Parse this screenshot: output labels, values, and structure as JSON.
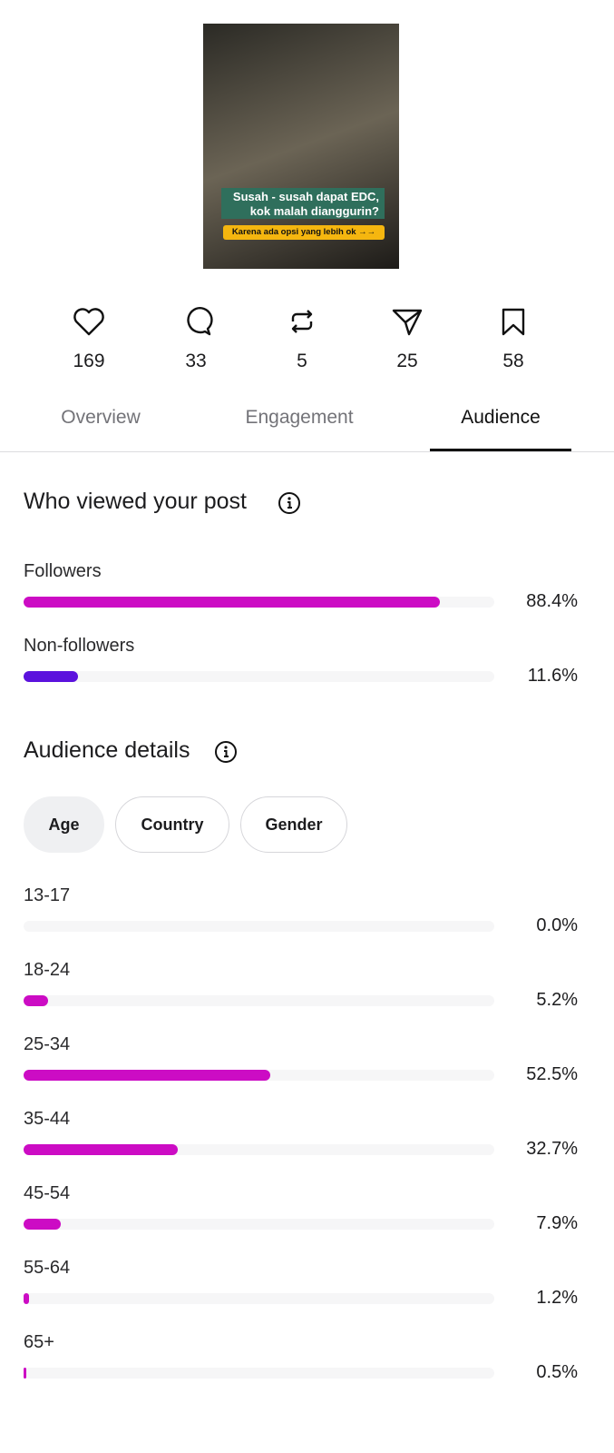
{
  "post": {
    "caption_lines": [
      "Susah - susah dapat EDC,",
      "kok malah dianggurin?"
    ],
    "banner": "Karena ada opsi yang lebih ok →→"
  },
  "stats": [
    169,
    33,
    5,
    25,
    58
  ],
  "tabs": [
    "Overview",
    "Engagement",
    "Audience"
  ],
  "viewers": {
    "title": "Who viewed your post",
    "categories": [
      "Followers",
      "Non-followers"
    ],
    "values": [
      88.4,
      11.6
    ],
    "value_labels": [
      "88.4%",
      "11.6%"
    ],
    "colors": [
      "#cc0cc4",
      "#5b12dd"
    ],
    "xlim": [
      0,
      100
    ]
  },
  "audience": {
    "title": "Audience details",
    "filters": [
      "Age",
      "Country",
      "Gender"
    ],
    "categories": [
      "13-17",
      "18-24",
      "25-34",
      "35-44",
      "45-54",
      "55-64",
      "65+"
    ],
    "values": [
      0.0,
      5.2,
      52.5,
      32.7,
      7.9,
      1.2,
      0.5
    ],
    "value_labels": [
      "0.0%",
      "5.2%",
      "52.5%",
      "32.7%",
      "7.9%",
      "1.2%",
      "0.5%"
    ],
    "color": "#cc0cc4",
    "xlim": [
      0,
      100
    ]
  }
}
